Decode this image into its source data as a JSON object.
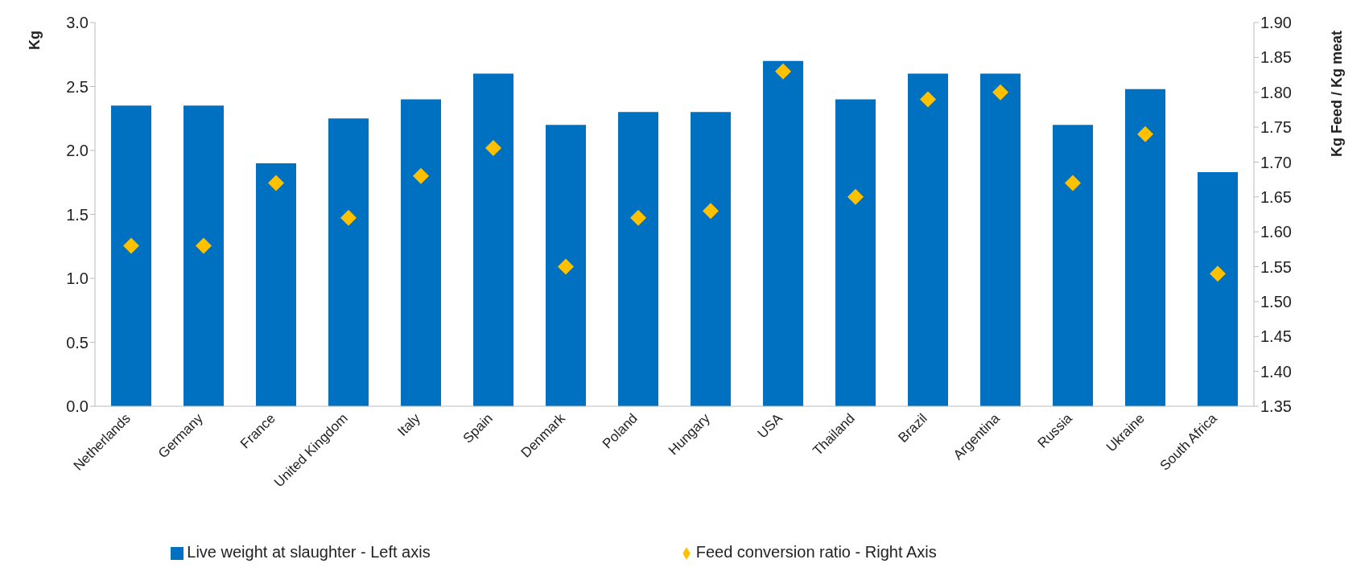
{
  "chart_data": {
    "type": "bar",
    "categories": [
      "Netherlands",
      "Germany",
      "France",
      "United Kingdom",
      "Italy",
      "Spain",
      "Denmark",
      "Poland",
      "Hungary",
      "USA",
      "Thailand",
      "Brazil",
      "Argentina",
      "Russia",
      "Ukraine",
      "South Africa"
    ],
    "ylabel": "Kg",
    "y2label": "Kg Feed / Kg meat",
    "series": [
      {
        "name": "Live weight at slaughter - Left axis",
        "color": "#0070c0",
        "values": [
          2.35,
          2.35,
          1.9,
          2.25,
          2.4,
          2.6,
          2.2,
          2.3,
          2.3,
          2.7,
          2.4,
          2.6,
          2.6,
          2.2,
          2.48,
          1.83
        ]
      },
      {
        "name": "Feed conversion ratio - Right Axis",
        "type": "scatter",
        "axis": "y2",
        "color": "#ffc000",
        "values": [
          1.58,
          1.58,
          1.67,
          1.62,
          1.68,
          1.72,
          1.55,
          1.62,
          1.63,
          1.83,
          1.65,
          1.79,
          1.8,
          1.67,
          1.74,
          1.54
        ]
      }
    ],
    "ylim": [
      0,
      3
    ],
    "yticks": [
      {
        "value": 0,
        "label": "0.0"
      },
      {
        "value": 0.5,
        "label": "0.5"
      },
      {
        "value": 1,
        "label": "1.0"
      },
      {
        "value": 1.5,
        "label": "1.5"
      },
      {
        "value": 2,
        "label": "2.0"
      },
      {
        "value": 2.5,
        "label": "2.5"
      },
      {
        "value": 3,
        "label": "3.0"
      }
    ],
    "y2lim": [
      1.35,
      1.9
    ],
    "y2ticks": [
      {
        "value": 1.35,
        "label": "1.35"
      },
      {
        "value": 1.4,
        "label": "1.40"
      },
      {
        "value": 1.45,
        "label": "1.45"
      },
      {
        "value": 1.5,
        "label": "1.50"
      },
      {
        "value": 1.55,
        "label": "1.55"
      },
      {
        "value": 1.6,
        "label": "1.60"
      },
      {
        "value": 1.65,
        "label": "1.65"
      },
      {
        "value": 1.7,
        "label": "1.70"
      },
      {
        "value": 1.75,
        "label": "1.75"
      },
      {
        "value": 1.8,
        "label": "1.80"
      },
      {
        "value": 1.85,
        "label": "1.85"
      },
      {
        "value": 1.9,
        "label": "1.90"
      }
    ],
    "grid": false,
    "legend": "bottom",
    "marker": "diamond"
  }
}
